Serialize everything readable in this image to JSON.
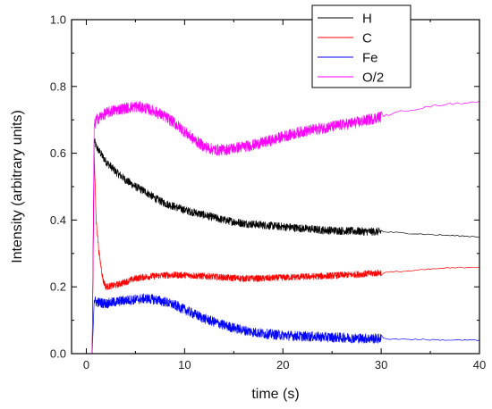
{
  "chart_data": {
    "type": "line",
    "title": "",
    "xlabel": "time (s)",
    "ylabel": "Intensity (arbitrary units)",
    "xlim": [
      -1.5,
      40
    ],
    "ylim": [
      0.0,
      1.0
    ],
    "x_ticks": [
      0,
      10,
      20,
      30,
      40
    ],
    "x_tick_labels": [
      "0",
      "10",
      "20",
      "30",
      "40"
    ],
    "y_ticks": [
      0.0,
      0.2,
      0.4,
      0.6,
      0.8,
      1.0
    ],
    "y_tick_labels": [
      "0.0",
      "0.2",
      "0.4",
      "0.6",
      "0.8",
      "1.0"
    ],
    "grid": false,
    "legend_position": "top-right",
    "series": [
      {
        "name": "H",
        "color": "#000000",
        "noise_dense": 0.012,
        "noise_sparse": 0.002,
        "points": [
          [
            0.6,
            0.0
          ],
          [
            0.8,
            0.64
          ],
          [
            1,
            0.62
          ],
          [
            2,
            0.575
          ],
          [
            3,
            0.545
          ],
          [
            4,
            0.52
          ],
          [
            5,
            0.5
          ],
          [
            6,
            0.485
          ],
          [
            7,
            0.465
          ],
          [
            8,
            0.45
          ],
          [
            9,
            0.44
          ],
          [
            10,
            0.43
          ],
          [
            12,
            0.415
          ],
          [
            14,
            0.4
          ],
          [
            16,
            0.39
          ],
          [
            18,
            0.385
          ],
          [
            20,
            0.38
          ],
          [
            22,
            0.375
          ],
          [
            24,
            0.37
          ],
          [
            26,
            0.368
          ],
          [
            28,
            0.366
          ],
          [
            30,
            0.365
          ],
          [
            33,
            0.36
          ],
          [
            36,
            0.355
          ],
          [
            40,
            0.35
          ]
        ]
      },
      {
        "name": "C",
        "color": "#ff0000",
        "noise_dense": 0.01,
        "noise_sparse": 0.002,
        "points": [
          [
            0.6,
            0.0
          ],
          [
            0.8,
            0.6
          ],
          [
            1,
            0.4
          ],
          [
            1.3,
            0.3
          ],
          [
            1.7,
            0.22
          ],
          [
            2,
            0.2
          ],
          [
            3,
            0.205
          ],
          [
            4,
            0.215
          ],
          [
            5,
            0.225
          ],
          [
            6,
            0.23
          ],
          [
            8,
            0.235
          ],
          [
            10,
            0.235
          ],
          [
            12,
            0.232
          ],
          [
            14,
            0.228
          ],
          [
            16,
            0.225
          ],
          [
            18,
            0.225
          ],
          [
            20,
            0.228
          ],
          [
            22,
            0.23
          ],
          [
            24,
            0.232
          ],
          [
            26,
            0.235
          ],
          [
            28,
            0.238
          ],
          [
            30,
            0.242
          ],
          [
            33,
            0.248
          ],
          [
            36,
            0.255
          ],
          [
            40,
            0.26
          ]
        ]
      },
      {
        "name": "Fe",
        "color": "#0000ff",
        "noise_dense": 0.015,
        "noise_sparse": 0.002,
        "points": [
          [
            0.6,
            0.0
          ],
          [
            0.8,
            0.16
          ],
          [
            1,
            0.155
          ],
          [
            2,
            0.15
          ],
          [
            3,
            0.155
          ],
          [
            4,
            0.16
          ],
          [
            5,
            0.162
          ],
          [
            6,
            0.165
          ],
          [
            7,
            0.162
          ],
          [
            8,
            0.155
          ],
          [
            9,
            0.145
          ],
          [
            10,
            0.132
          ],
          [
            11,
            0.118
          ],
          [
            12,
            0.105
          ],
          [
            13,
            0.095
          ],
          [
            14,
            0.085
          ],
          [
            15,
            0.077
          ],
          [
            16,
            0.07
          ],
          [
            17,
            0.065
          ],
          [
            18,
            0.06
          ],
          [
            20,
            0.055
          ],
          [
            22,
            0.052
          ],
          [
            24,
            0.05
          ],
          [
            26,
            0.048
          ],
          [
            28,
            0.046
          ],
          [
            30,
            0.045
          ],
          [
            33,
            0.043
          ],
          [
            36,
            0.041
          ],
          [
            40,
            0.04
          ]
        ]
      },
      {
        "name": "O/2",
        "color": "#ff00ff",
        "noise_dense": 0.017,
        "noise_sparse": 0.003,
        "points": [
          [
            0.6,
            0.0
          ],
          [
            0.8,
            0.68
          ],
          [
            1,
            0.7
          ],
          [
            2,
            0.72
          ],
          [
            3,
            0.73
          ],
          [
            4,
            0.735
          ],
          [
            5,
            0.74
          ],
          [
            6,
            0.735
          ],
          [
            7,
            0.725
          ],
          [
            8,
            0.71
          ],
          [
            9,
            0.69
          ],
          [
            10,
            0.665
          ],
          [
            11,
            0.64
          ],
          [
            12,
            0.62
          ],
          [
            13,
            0.61
          ],
          [
            14,
            0.61
          ],
          [
            15,
            0.615
          ],
          [
            16,
            0.62
          ],
          [
            17,
            0.625
          ],
          [
            18,
            0.632
          ],
          [
            19,
            0.64
          ],
          [
            20,
            0.65
          ],
          [
            22,
            0.665
          ],
          [
            24,
            0.675
          ],
          [
            26,
            0.685
          ],
          [
            28,
            0.695
          ],
          [
            30,
            0.71
          ],
          [
            32,
            0.725
          ],
          [
            34,
            0.735
          ],
          [
            36,
            0.745
          ],
          [
            38,
            0.75
          ],
          [
            40,
            0.755
          ]
        ]
      }
    ]
  }
}
